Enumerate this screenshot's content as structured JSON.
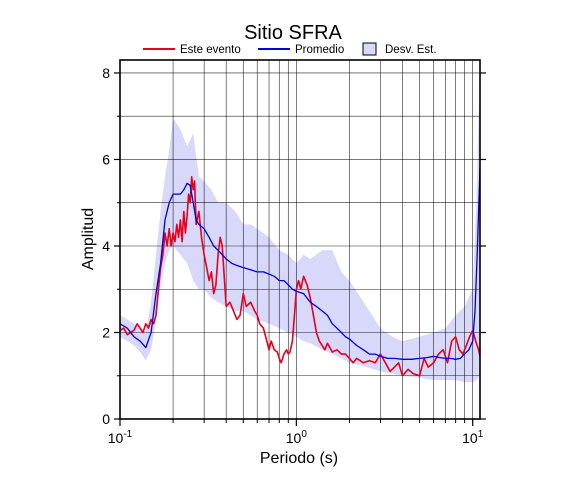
{
  "chart_data": {
    "type": "line",
    "title": "Sitio SFRA",
    "xlabel": "Periodo (s)",
    "ylabel": "Amplitud",
    "xscale": "log",
    "xlim": [
      0.1,
      11
    ],
    "ylim": [
      0,
      8.3
    ],
    "x_ticks": [
      0.1,
      1,
      10
    ],
    "x_tick_labels": [
      "10^-1",
      "10^0",
      "10^1"
    ],
    "y_ticks": [
      0,
      2,
      4,
      6,
      8
    ],
    "y_tick_labels": [
      "0",
      "2",
      "4",
      "6",
      "8"
    ],
    "grid": true,
    "legend_position": "top",
    "legend": [
      {
        "label": "Este evento",
        "kind": "line",
        "color": "#e8001c"
      },
      {
        "label": "Promedio",
        "kind": "line",
        "color": "#0000dd"
      },
      {
        "label": "Desv. Est.",
        "kind": "band",
        "color": "#d8d8fa"
      }
    ],
    "band": {
      "name": "Desv. Est.",
      "x": [
        0.1,
        0.11,
        0.12,
        0.13,
        0.14,
        0.15,
        0.16,
        0.17,
        0.18,
        0.19,
        0.2,
        0.22,
        0.24,
        0.26,
        0.28,
        0.3,
        0.33,
        0.36,
        0.4,
        0.45,
        0.5,
        0.55,
        0.6,
        0.7,
        0.8,
        0.9,
        1.0,
        1.1,
        1.2,
        1.4,
        1.6,
        1.8,
        2.0,
        2.5,
        3.0,
        3.5,
        4.0,
        5.0,
        6.0,
        7.0,
        8.0,
        9.0,
        10.0,
        10.5,
        11.0
      ],
      "upper": [
        2.4,
        2.3,
        2.2,
        2.1,
        2.0,
        2.7,
        3.8,
        4.8,
        5.6,
        6.2,
        6.95,
        6.7,
        6.3,
        6.6,
        5.6,
        5.5,
        5.3,
        5.0,
        5.0,
        4.8,
        4.5,
        4.5,
        4.4,
        4.2,
        3.9,
        3.8,
        3.6,
        3.8,
        3.7,
        3.9,
        3.9,
        3.4,
        3.2,
        2.6,
        2.1,
        1.9,
        1.8,
        1.9,
        2.0,
        2.1,
        2.4,
        2.6,
        3.0,
        5.0,
        8.3
      ],
      "lower": [
        1.9,
        1.8,
        1.7,
        1.55,
        1.35,
        1.6,
        2.3,
        3.1,
        3.6,
        3.9,
        4.0,
        3.8,
        3.6,
        3.2,
        3.0,
        3.0,
        2.8,
        2.7,
        2.6,
        2.5,
        2.5,
        2.4,
        2.3,
        2.2,
        2.1,
        2.0,
        1.9,
        1.8,
        1.75,
        1.6,
        1.5,
        1.4,
        1.3,
        1.2,
        1.1,
        1.05,
        1.0,
        0.95,
        0.9,
        0.9,
        0.9,
        0.85,
        0.85,
        0.9,
        1.0
      ]
    },
    "series": [
      {
        "name": "Este evento",
        "color": "#e8001c",
        "x": [
          0.1,
          0.105,
          0.11,
          0.115,
          0.12,
          0.125,
          0.13,
          0.135,
          0.14,
          0.145,
          0.15,
          0.155,
          0.16,
          0.165,
          0.17,
          0.175,
          0.18,
          0.185,
          0.19,
          0.195,
          0.2,
          0.205,
          0.21,
          0.215,
          0.22,
          0.225,
          0.23,
          0.235,
          0.24,
          0.245,
          0.25,
          0.255,
          0.26,
          0.265,
          0.27,
          0.28,
          0.29,
          0.3,
          0.31,
          0.32,
          0.33,
          0.34,
          0.35,
          0.36,
          0.37,
          0.38,
          0.4,
          0.42,
          0.44,
          0.46,
          0.48,
          0.5,
          0.52,
          0.55,
          0.58,
          0.6,
          0.62,
          0.65,
          0.68,
          0.7,
          0.72,
          0.75,
          0.78,
          0.8,
          0.82,
          0.85,
          0.88,
          0.9,
          0.92,
          0.95,
          0.98,
          1.0,
          1.03,
          1.06,
          1.1,
          1.15,
          1.2,
          1.25,
          1.3,
          1.35,
          1.4,
          1.45,
          1.5,
          1.6,
          1.7,
          1.8,
          1.9,
          2.0,
          2.1,
          2.2,
          2.4,
          2.6,
          2.8,
          3.0,
          3.2,
          3.4,
          3.6,
          3.8,
          4.0,
          4.3,
          4.6,
          5.0,
          5.3,
          5.6,
          6.0,
          6.4,
          6.8,
          7.2,
          7.6,
          8.0,
          8.4,
          8.8,
          9.2,
          9.6,
          10.0,
          10.4,
          10.8,
          11.0
        ],
        "y": [
          2.05,
          2.1,
          1.95,
          2.0,
          2.05,
          2.2,
          2.1,
          2.0,
          2.2,
          2.1,
          2.3,
          2.2,
          2.4,
          3.0,
          3.5,
          3.8,
          4.3,
          4.0,
          4.4,
          4.0,
          4.3,
          4.1,
          4.5,
          4.2,
          4.6,
          4.1,
          4.8,
          4.3,
          4.7,
          5.2,
          5.0,
          5.6,
          5.3,
          5.5,
          4.5,
          4.8,
          4.2,
          3.8,
          3.5,
          3.2,
          3.4,
          2.9,
          3.1,
          3.8,
          4.2,
          4.0,
          2.6,
          2.7,
          2.5,
          2.3,
          2.4,
          2.9,
          2.6,
          2.7,
          2.5,
          2.4,
          2.2,
          2.1,
          1.8,
          1.6,
          1.8,
          1.6,
          1.55,
          1.4,
          1.3,
          1.5,
          1.6,
          1.5,
          1.55,
          1.8,
          2.5,
          3.0,
          3.2,
          3.0,
          3.3,
          3.1,
          2.8,
          2.4,
          2.0,
          1.8,
          1.7,
          1.6,
          1.75,
          1.55,
          1.6,
          1.5,
          1.5,
          1.4,
          1.3,
          1.4,
          1.3,
          1.35,
          1.3,
          1.5,
          1.3,
          1.1,
          1.2,
          1.3,
          1.0,
          1.15,
          1.05,
          1.0,
          1.4,
          1.2,
          1.3,
          1.5,
          1.6,
          1.3,
          1.8,
          1.9,
          1.6,
          1.5,
          1.7,
          1.9,
          2.05,
          1.8,
          1.6,
          1.45
        ]
      },
      {
        "name": "Promedio",
        "color": "#0000dd",
        "x": [
          0.1,
          0.11,
          0.12,
          0.13,
          0.14,
          0.15,
          0.16,
          0.17,
          0.18,
          0.19,
          0.2,
          0.21,
          0.22,
          0.23,
          0.24,
          0.25,
          0.26,
          0.27,
          0.28,
          0.3,
          0.32,
          0.34,
          0.36,
          0.38,
          0.4,
          0.43,
          0.46,
          0.5,
          0.55,
          0.6,
          0.65,
          0.7,
          0.75,
          0.8,
          0.85,
          0.9,
          0.95,
          1.0,
          1.1,
          1.2,
          1.3,
          1.4,
          1.5,
          1.6,
          1.7,
          1.8,
          1.9,
          2.0,
          2.2,
          2.4,
          2.6,
          2.8,
          3.0,
          3.3,
          3.6,
          4.0,
          4.5,
          5.0,
          5.5,
          6.0,
          6.5,
          7.0,
          7.5,
          8.0,
          8.5,
          9.0,
          9.5,
          10.0,
          10.3,
          10.6,
          11.0
        ],
        "y": [
          2.2,
          2.1,
          1.9,
          1.8,
          1.65,
          2.0,
          2.9,
          3.6,
          4.6,
          5.0,
          5.2,
          5.2,
          5.2,
          5.3,
          5.45,
          5.4,
          5.0,
          4.6,
          4.5,
          4.4,
          4.2,
          4.0,
          3.9,
          3.8,
          3.7,
          3.6,
          3.55,
          3.5,
          3.45,
          3.4,
          3.4,
          3.35,
          3.3,
          3.2,
          3.2,
          3.1,
          3.0,
          2.95,
          2.9,
          2.7,
          2.6,
          2.5,
          2.4,
          2.2,
          2.1,
          2.0,
          1.9,
          1.85,
          1.7,
          1.6,
          1.5,
          1.5,
          1.45,
          1.4,
          1.4,
          1.38,
          1.38,
          1.4,
          1.42,
          1.45,
          1.42,
          1.4,
          1.4,
          1.38,
          1.4,
          1.5,
          1.6,
          1.8,
          2.5,
          3.8,
          5.8
        ]
      }
    ]
  }
}
